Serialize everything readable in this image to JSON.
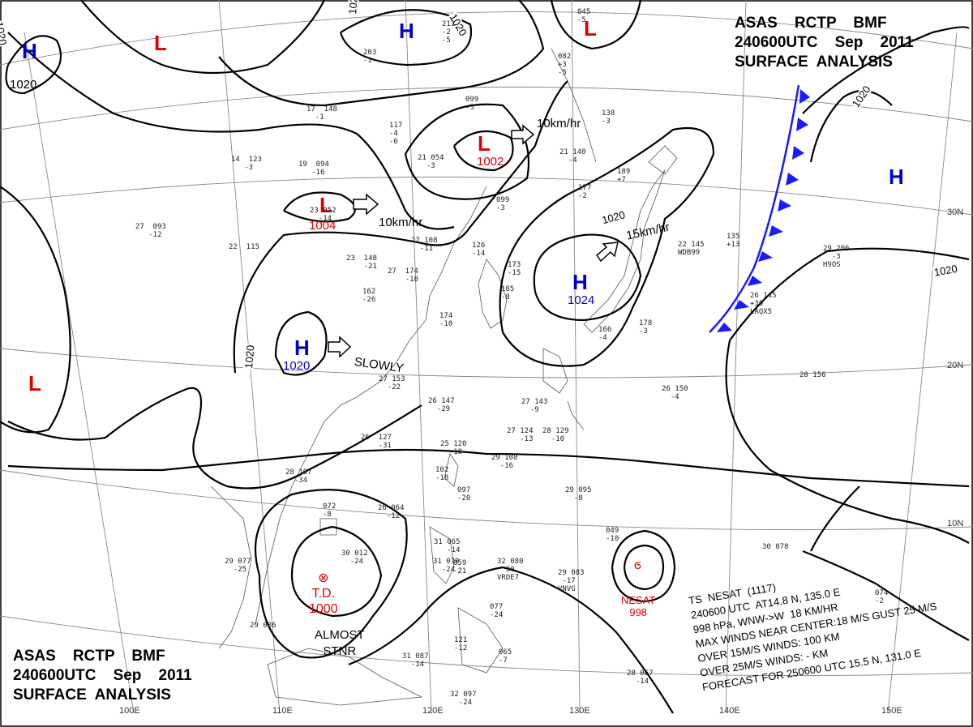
{
  "header": {
    "line1": "ASAS    RCTP    BMF",
    "line2": "240600UTC    Sep    2011",
    "line3": "SURFACE  ANALYSIS"
  },
  "systems": [
    {
      "type": "H",
      "pressure": "1020"
    },
    {
      "type": "L",
      "pressure": ""
    },
    {
      "type": "H",
      "pressure": ""
    },
    {
      "type": "L",
      "pressure": ""
    },
    {
      "type": "L",
      "pressure": "1002"
    },
    {
      "type": "L",
      "pressure": "1004"
    },
    {
      "type": "H",
      "pressure": "1024"
    },
    {
      "type": "H",
      "pressure": "1020"
    },
    {
      "type": "L",
      "pressure": ""
    },
    {
      "type": "H",
      "pressure": ""
    }
  ],
  "motions": [
    {
      "text": "10km/hr"
    },
    {
      "text": "10km/hr"
    },
    {
      "text": "15km/hr"
    },
    {
      "text": "SLOWLY"
    }
  ],
  "isobar_labels": [
    "1020",
    "1020",
    "1020",
    "1020",
    "1020",
    "1020",
    "1020"
  ],
  "lon_labels": [
    "100E",
    "110E",
    "120E",
    "130E",
    "140E",
    "150E"
  ],
  "lat_labels": [
    "30N",
    "20N",
    "10N"
  ],
  "depression": {
    "symbol": "⊗",
    "label": "T.D.",
    "pressure": "1000",
    "note_line1": "ALMOST",
    "note_line2": "STNR"
  },
  "storm": {
    "name": "NESAT",
    "pressure": "998",
    "info_lines": [
      "TS  NESAT  (1117)",
      "240600 UTC  AT14.8 N, 135.0 E",
      "998 hPa, WNW->W  18 KM/HR",
      "MAX WINDS NEAR CENTER:18 M/S GUST 25 M/S",
      "OVER 15M/S WINDS: 100 KM",
      "OVER 25M/S WINDS: - KM",
      "FORECAST FOR 250600 UTC 15.5 N, 131.0 E"
    ]
  },
  "stations": [
    {
      "text": [
        "203",
        "-1"
      ]
    },
    {
      "text": [
        "211",
        "-2",
        "-5"
      ]
    },
    {
      "text": [
        "045",
        "-5"
      ]
    },
    {
      "text": [
        "082",
        "+3",
        "-5"
      ]
    },
    {
      "text": [
        "17  148",
        "  -1"
      ]
    },
    {
      "text": [
        "099",
        "-3"
      ]
    },
    {
      "text": [
        "117",
        "-4",
        "-6"
      ]
    },
    {
      "text": [
        "14  123",
        "   -3"
      ]
    },
    {
      "text": [
        "19  094",
        "   -16"
      ]
    },
    {
      "text": [
        "21 054",
        "  -3"
      ]
    },
    {
      "text": [
        "21 140",
        "  -4"
      ]
    },
    {
      "text": [
        "138",
        "-3"
      ]
    },
    {
      "text": [
        "177",
        "-2"
      ]
    },
    {
      "text": [
        "189",
        "+7"
      ]
    },
    {
      "text": [
        "23 052",
        "  -14"
      ]
    },
    {
      "text": [
        "27  093",
        "   -12"
      ]
    },
    {
      "text": [
        "22  115"
      ]
    },
    {
      "text": [
        "27 108",
        "  -11"
      ]
    },
    {
      "text": [
        "126",
        "-14"
      ]
    },
    {
      "text": [
        "099",
        "-3"
      ]
    },
    {
      "text": [
        "22 145",
        "WDB99"
      ]
    },
    {
      "text": [
        "135",
        "+13"
      ]
    },
    {
      "text": [
        "23  148",
        "    -21"
      ]
    },
    {
      "text": [
        "27  174",
        "    -18"
      ]
    },
    {
      "text": [
        "173",
        "-15"
      ]
    },
    {
      "text": [
        "185",
        "-8"
      ]
    },
    {
      "text": [
        "162",
        "-26"
      ]
    },
    {
      "text": [
        "174",
        "-10"
      ]
    },
    {
      "text": [
        "26 145",
        "+30",
        "LAQX5"
      ]
    },
    {
      "text": [
        "29 206",
        "  -3",
        "H9OS"
      ]
    },
    {
      "text": [
        "166",
        "-4"
      ]
    },
    {
      "text": [
        "178",
        "-3"
      ]
    },
    {
      "text": [
        "27 153",
        "  -22"
      ]
    },
    {
      "text": [
        "26 147",
        "  -29"
      ]
    },
    {
      "text": [
        "26 150",
        "  -4"
      ]
    },
    {
      "text": [
        "28 156"
      ]
    },
    {
      "text": [
        "27 143",
        "  -9"
      ]
    },
    {
      "text": [
        "26  127",
        "    -31"
      ]
    },
    {
      "text": [
        "27 124",
        "   -13"
      ]
    },
    {
      "text": [
        "28 129",
        "  -10"
      ]
    },
    {
      "text": [
        "25 120",
        "  -18"
      ]
    },
    {
      "text": [
        "29 108",
        "  -16"
      ]
    },
    {
      "text": [
        "28 107",
        "  -34"
      ]
    },
    {
      "text": [
        "102",
        "-18"
      ]
    },
    {
      "text": [
        "097",
        "-20"
      ]
    },
    {
      "text": [
        "26 064",
        "  -12"
      ]
    },
    {
      "text": [
        "29 095",
        "  -8"
      ]
    },
    {
      "text": [
        "072",
        "-8"
      ]
    },
    {
      "text": [
        "049",
        "-10"
      ]
    },
    {
      "text": [
        "30 012",
        "  -24"
      ]
    },
    {
      "text": [
        "29 077",
        "  -25"
      ]
    },
    {
      "text": [
        "31 065",
        "   -14"
      ]
    },
    {
      "text": [
        "31 070",
        "  -24"
      ]
    },
    {
      "text": [
        "059",
        "-21"
      ]
    },
    {
      "text": [
        "32 080",
        "  30",
        "VRDE7"
      ]
    },
    {
      "text": [
        "29 083",
        " -17",
        "VNVG"
      ]
    },
    {
      "text": [
        "077",
        "-24"
      ]
    },
    {
      "text": [
        "121",
        "-12"
      ]
    },
    {
      "text": [
        "29 086"
      ]
    },
    {
      "text": [
        "31 087",
        "  -14"
      ]
    },
    {
      "text": [
        "065",
        "-7"
      ]
    },
    {
      "text": [
        "32 097",
        "  -24"
      ]
    },
    {
      "text": [
        "28 067",
        "  -14"
      ]
    },
    {
      "text": [
        "30 078"
      ]
    },
    {
      "text": [
        "074",
        "-2"
      ]
    }
  ],
  "colors": {
    "high": "#0000cc",
    "low": "#dd0000",
    "front": "#1a1aff",
    "isobar": "#000000",
    "coast": "#555555",
    "grid": "#888888"
  }
}
